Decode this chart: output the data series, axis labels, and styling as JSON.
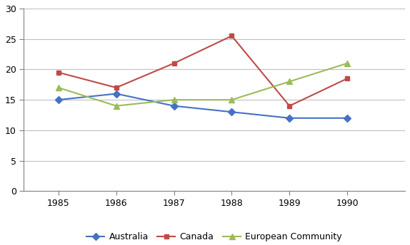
{
  "years": [
    1985,
    1986,
    1987,
    1988,
    1989,
    1990
  ],
  "australia": [
    15,
    16,
    14,
    13,
    12,
    12
  ],
  "canada": [
    19.5,
    17,
    21,
    25.5,
    14,
    18.5
  ],
  "european_community": [
    17,
    14,
    15,
    15,
    18,
    21
  ],
  "australia_color": "#4472C4",
  "canada_color": "#BE4B48",
  "ec_color": "#9BBB59",
  "legend_labels": [
    "Australia",
    "Canada",
    "European Community"
  ],
  "ylim": [
    0,
    30
  ],
  "yticks": [
    0,
    5,
    10,
    15,
    20,
    25,
    30
  ],
  "background_color": "#FFFFFF",
  "grid_color": "#C0C0C0",
  "spine_color": "#808080"
}
